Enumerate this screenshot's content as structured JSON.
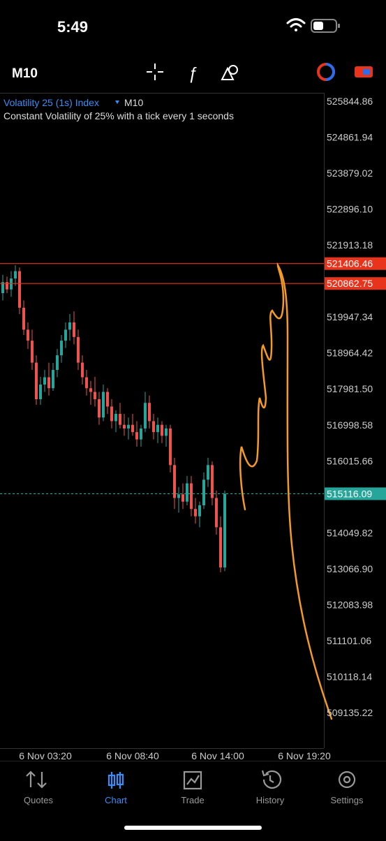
{
  "status_bar": {
    "time": "5:49"
  },
  "toolbar": {
    "timeframe": "M10"
  },
  "chart_data": {
    "type": "candlestick",
    "title": "Volatility 25 (1s) Index",
    "timeframe": "M10",
    "subtitle": "Constant Volatility of 25% with a tick every 1 seconds",
    "open": [
      520599,
      520900,
      520700,
      521000,
      521200,
      520200,
      519600,
      519300,
      518700,
      517700,
      518100,
      518300,
      518000,
      518500,
      518900,
      519300,
      519600,
      519800,
      519400,
      518700,
      518300,
      518000,
      517900,
      517700,
      517200,
      517900,
      517500,
      517100,
      517300,
      517000,
      516900,
      517000,
      516800,
      516600,
      516900,
      517600,
      517100,
      516800,
      517000,
      516700,
      516900,
      515900,
      515000,
      515100,
      514900,
      515400,
      514700,
      514500,
      514800,
      515500,
      515900,
      515000,
      514200,
      513100
    ],
    "high": [
      521100,
      521050,
      521200,
      521362,
      521300,
      520400,
      519800,
      519600,
      518900,
      518310,
      518500,
      518700,
      518692,
      519073,
      519455,
      519800,
      520027,
      520100,
      519600,
      518900,
      518500,
      518200,
      518310,
      517900,
      518100,
      518000,
      517700,
      517400,
      517600,
      517300,
      517200,
      517300,
      517100,
      517000,
      517900,
      517800,
      517300,
      517200,
      517100,
      517000,
      517000,
      516100,
      515300,
      515400,
      515600,
      515600,
      515000,
      514900,
      515700,
      516100,
      516000,
      515200,
      514500,
      515200
    ],
    "low": [
      520400,
      520600,
      520500,
      520800,
      520027,
      519455,
      519073,
      518500,
      517548,
      517548,
      517900,
      517800,
      517929,
      518300,
      518700,
      519100,
      519300,
      519200,
      518500,
      518100,
      517800,
      517548,
      517500,
      517000,
      517100,
      517300,
      516900,
      516800,
      516900,
      516700,
      516600,
      516700,
      516403,
      516400,
      516800,
      516900,
      516600,
      516500,
      516500,
      516400,
      515700,
      514700,
      514600,
      514700,
      514800,
      514500,
      514300,
      514200,
      514700,
      515300,
      514800,
      514000,
      512969,
      513000
    ],
    "close": [
      520900,
      520700,
      521000,
      521200,
      520200,
      519600,
      519300,
      518700,
      517700,
      518100,
      518300,
      518000,
      518500,
      518900,
      519300,
      519600,
      519800,
      519400,
      518700,
      518300,
      518000,
      517900,
      517700,
      517200,
      517900,
      517500,
      517100,
      517300,
      517000,
      516900,
      517000,
      516800,
      516600,
      516900,
      517600,
      517100,
      516800,
      517000,
      516700,
      516900,
      515900,
      515000,
      515100,
      514900,
      515400,
      514700,
      514500,
      514800,
      515500,
      515900,
      515000,
      514200,
      513100,
      515116.09
    ],
    "up_color": "#26a69a",
    "down_color": "#ef5350",
    "ylim": [
      508162,
      526074
    ],
    "yticks": [
      525844.86,
      524861.94,
      523879.02,
      {
        "value": 522896.1,
        "label": "522896.10"
      },
      521913.18,
      519947.34,
      518964.42,
      {
        "value": 517981.5,
        "label": "517981.50"
      },
      516998.58,
      516015.66,
      514049.82,
      {
        "value": 513066.9,
        "label": "513066.90"
      },
      512083.98,
      511101.06,
      510118.14,
      509135.22
    ],
    "xtick_labels": [
      "6 Nov 03:20",
      "6 Nov 08:40",
      "6 Nov 14:00",
      "6 Nov 19:20"
    ],
    "price_lines": [
      {
        "value": 521406.46,
        "color": "#e8341c",
        "dashed": false
      },
      {
        "value": 520862.75,
        "color": "#e8341c",
        "dashed": false
      },
      {
        "value": 515116.09,
        "color": "#26a69a",
        "dashed": true
      }
    ]
  },
  "tab_bar": {
    "tabs": [
      "Quotes",
      "Chart",
      "Trade",
      "History",
      "Settings"
    ],
    "active": 1
  }
}
